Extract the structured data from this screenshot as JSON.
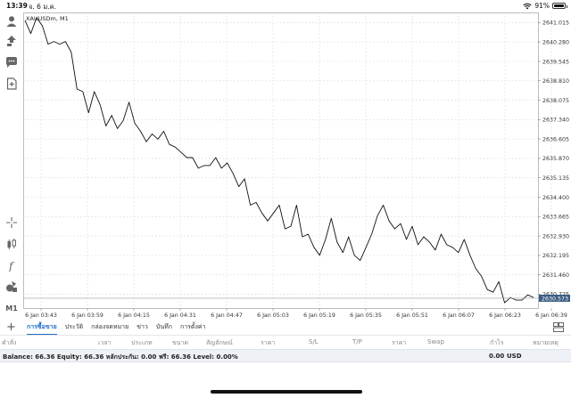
{
  "status_bar": {
    "time": "13:39",
    "date": "จ. 6 ม.ค.",
    "battery": "91%"
  },
  "left_toolbar": {
    "icons": [
      "account-icon",
      "trade-icon",
      "chat-icon",
      "new-document-icon",
      "crosshair-icon",
      "chart-type-icon",
      "indicator-icon",
      "objects-icon"
    ],
    "timeframe": "M1"
  },
  "chart": {
    "symbol_label": "XAUUSDm, M1",
    "current_price": "2630.573",
    "price_ticks": [
      "2641.015",
      "2640.280",
      "2639.545",
      "2638.810",
      "2638.075",
      "2637.340",
      "2636.605",
      "2635.870",
      "2635.135",
      "2634.400",
      "2633.665",
      "2632.930",
      "2632.195",
      "2631.460",
      "2630.725"
    ],
    "time_ticks": [
      "6 Jan 03:43",
      "6 Jan 03:59",
      "6 Jan 04:15",
      "6 Jan 04:31",
      "6 Jan 04:47",
      "6 Jan 05:03",
      "6 Jan 05:19",
      "6 Jan 05:35",
      "6 Jan 05:51",
      "6 Jan 06:07",
      "6 Jan 06:23",
      "6 Jan 06:39"
    ]
  },
  "chart_data": {
    "type": "line",
    "title": "XAUUSDm, M1",
    "xlabel": "",
    "ylabel": "",
    "ylim": [
      2630.2,
      2641.4
    ],
    "x": [
      "03:43",
      "03:45",
      "03:47",
      "03:49",
      "03:51",
      "03:53",
      "03:55",
      "03:57",
      "03:59",
      "04:01",
      "04:03",
      "04:05",
      "04:07",
      "04:09",
      "04:11",
      "04:13",
      "04:15",
      "04:17",
      "04:19",
      "04:21",
      "04:23",
      "04:25",
      "04:27",
      "04:29",
      "04:31",
      "04:33",
      "04:35",
      "04:37",
      "04:39",
      "04:41",
      "04:43",
      "04:45",
      "04:47",
      "04:49",
      "04:51",
      "04:53",
      "04:55",
      "04:57",
      "04:59",
      "05:01",
      "05:03",
      "05:05",
      "05:07",
      "05:09",
      "05:11",
      "05:13",
      "05:15",
      "05:17",
      "05:19",
      "05:21",
      "05:23",
      "05:25",
      "05:27",
      "05:29",
      "05:31",
      "05:33",
      "05:35",
      "05:37",
      "05:39",
      "05:41",
      "05:43",
      "05:45",
      "05:47",
      "05:49",
      "05:51",
      "05:53",
      "05:55",
      "05:57",
      "05:59",
      "06:01",
      "06:03",
      "06:05",
      "06:07",
      "06:09",
      "06:11",
      "06:13",
      "06:15",
      "06:17",
      "06:19",
      "06:21",
      "06:23",
      "06:25",
      "06:27",
      "06:29",
      "06:31",
      "06:33",
      "06:35",
      "06:37",
      "06:39"
    ],
    "series": [
      {
        "values": [
          2641.1,
          2640.6,
          2641.2,
          2640.9,
          2640.2,
          2640.3,
          2640.2,
          2640.3,
          2639.9,
          2638.5,
          2638.4,
          2637.6,
          2638.4,
          2637.9,
          2637.1,
          2637.5,
          2637.0,
          2637.3,
          2638.0,
          2637.2,
          2636.9,
          2636.5,
          2636.8,
          2636.6,
          2636.9,
          2636.4,
          2636.3,
          2636.1,
          2635.9,
          2635.9,
          2635.5,
          2635.6,
          2635.6,
          2635.9,
          2635.5,
          2635.7,
          2635.3,
          2634.8,
          2635.1,
          2634.1,
          2634.2,
          2633.8,
          2633.5,
          2633.8,
          2634.1,
          2633.2,
          2633.3,
          2634.1,
          2632.9,
          2633.0,
          2632.5,
          2632.2,
          2632.8,
          2633.6,
          2632.7,
          2632.3,
          2632.9,
          2632.2,
          2632.0,
          2632.5,
          2633.0,
          2633.7,
          2634.1,
          2633.5,
          2633.2,
          2633.4,
          2632.8,
          2633.3,
          2632.6,
          2632.9,
          2632.7,
          2632.4,
          2633.0,
          2632.6,
          2632.5,
          2632.3,
          2632.8,
          2632.2,
          2631.7,
          2631.4,
          2630.9,
          2630.8,
          2631.2,
          2630.4,
          2630.6,
          2630.5,
          2630.5,
          2630.7,
          2630.6
        ]
      }
    ],
    "grid": true,
    "legend": "none"
  },
  "tabs": {
    "items": [
      "การซื้อขาย",
      "ประวัติ",
      "กล่องจดหมาย",
      "ข่าว",
      "บันทึก",
      "การตั้งค่า"
    ],
    "active": "การซื้อขาย"
  },
  "table_header": {
    "columns": [
      "คำสั่ง",
      "เวลา",
      "ประเภท",
      "ขนาด",
      "สัญลักษณ์",
      "ราคา",
      "S/L",
      "T/P",
      "ราคา",
      "Swap",
      "กำไร",
      "หมายเหตุ"
    ]
  },
  "balance": {
    "text": "Balance: 66.36 Equity: 66.36 หลักประกัน: 0.00 ฟรี: 66.36 Level: 0.00%",
    "profit": "0.00",
    "currency": "USD"
  },
  "colors": {
    "accent": "#1f6ec7",
    "price_label_bg": "#3b5d82",
    "line": "#111111",
    "grid": "#d0d0d0"
  }
}
